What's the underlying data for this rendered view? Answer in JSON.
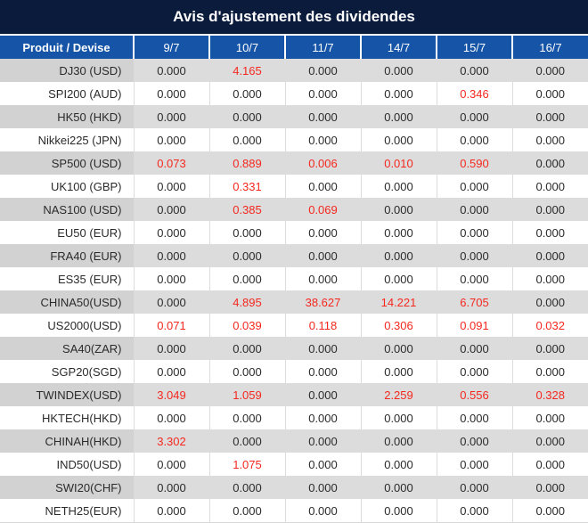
{
  "header": {
    "title": "Avis d'ajustement des dividendes"
  },
  "colors": {
    "title_bar_bg": "#0b1b3c",
    "header_row_bg": "#1554a7",
    "row_gray": "#dcdcdc",
    "first_col_gray": "#d2d2d2",
    "text_dark": "#2b2b2b",
    "value_red": "#f5281f"
  },
  "table": {
    "columns": [
      "Produit / Devise",
      "9/7",
      "10/7",
      "11/7",
      "14/7",
      "15/7",
      "16/7"
    ],
    "rows": [
      {
        "product": "DJ30 (USD)",
        "values": [
          "0.000",
          "4.165",
          "0.000",
          "0.000",
          "0.000",
          "0.000"
        ],
        "red": [
          1
        ]
      },
      {
        "product": "SPI200 (AUD)",
        "values": [
          "0.000",
          "0.000",
          "0.000",
          "0.000",
          "0.346",
          "0.000"
        ],
        "red": [
          4
        ]
      },
      {
        "product": "HK50 (HKD)",
        "values": [
          "0.000",
          "0.000",
          "0.000",
          "0.000",
          "0.000",
          "0.000"
        ],
        "red": []
      },
      {
        "product": "Nikkei225 (JPN)",
        "values": [
          "0.000",
          "0.000",
          "0.000",
          "0.000",
          "0.000",
          "0.000"
        ],
        "red": []
      },
      {
        "product": "SP500 (USD)",
        "values": [
          "0.073",
          "0.889",
          "0.006",
          "0.010",
          "0.590",
          "0.000"
        ],
        "red": [
          0,
          1,
          2,
          3,
          4
        ]
      },
      {
        "product": "UK100 (GBP)",
        "values": [
          "0.000",
          "0.331",
          "0.000",
          "0.000",
          "0.000",
          "0.000"
        ],
        "red": [
          1
        ]
      },
      {
        "product": "NAS100 (USD)",
        "values": [
          "0.000",
          "0.385",
          "0.069",
          "0.000",
          "0.000",
          "0.000"
        ],
        "red": [
          1,
          2
        ]
      },
      {
        "product": "EU50 (EUR)",
        "values": [
          "0.000",
          "0.000",
          "0.000",
          "0.000",
          "0.000",
          "0.000"
        ],
        "red": []
      },
      {
        "product": "FRA40 (EUR)",
        "values": [
          "0.000",
          "0.000",
          "0.000",
          "0.000",
          "0.000",
          "0.000"
        ],
        "red": []
      },
      {
        "product": "ES35 (EUR)",
        "values": [
          "0.000",
          "0.000",
          "0.000",
          "0.000",
          "0.000",
          "0.000"
        ],
        "red": []
      },
      {
        "product": "CHINA50(USD)",
        "values": [
          "0.000",
          "4.895",
          "38.627",
          "14.221",
          "6.705",
          "0.000"
        ],
        "red": [
          1,
          2,
          3,
          4
        ]
      },
      {
        "product": "US2000(USD)",
        "values": [
          "0.071",
          "0.039",
          "0.118",
          "0.306",
          "0.091",
          "0.032"
        ],
        "red": [
          0,
          1,
          2,
          3,
          4,
          5
        ]
      },
      {
        "product": "SA40(ZAR)",
        "values": [
          "0.000",
          "0.000",
          "0.000",
          "0.000",
          "0.000",
          "0.000"
        ],
        "red": []
      },
      {
        "product": "SGP20(SGD)",
        "values": [
          "0.000",
          "0.000",
          "0.000",
          "0.000",
          "0.000",
          "0.000"
        ],
        "red": []
      },
      {
        "product": "TWINDEX(USD)",
        "values": [
          "3.049",
          "1.059",
          "0.000",
          "2.259",
          "0.556",
          "0.328"
        ],
        "red": [
          0,
          1,
          3,
          4,
          5
        ]
      },
      {
        "product": "HKTECH(HKD)",
        "values": [
          "0.000",
          "0.000",
          "0.000",
          "0.000",
          "0.000",
          "0.000"
        ],
        "red": []
      },
      {
        "product": "CHINAH(HKD)",
        "values": [
          "3.302",
          "0.000",
          "0.000",
          "0.000",
          "0.000",
          "0.000"
        ],
        "red": [
          0
        ]
      },
      {
        "product": "IND50(USD)",
        "values": [
          "0.000",
          "1.075",
          "0.000",
          "0.000",
          "0.000",
          "0.000"
        ],
        "red": [
          1
        ]
      },
      {
        "product": "SWI20(CHF)",
        "values": [
          "0.000",
          "0.000",
          "0.000",
          "0.000",
          "0.000",
          "0.000"
        ],
        "red": []
      },
      {
        "product": "NETH25(EUR)",
        "values": [
          "0.000",
          "0.000",
          "0.000",
          "0.000",
          "0.000",
          "0.000"
        ],
        "red": []
      }
    ]
  }
}
